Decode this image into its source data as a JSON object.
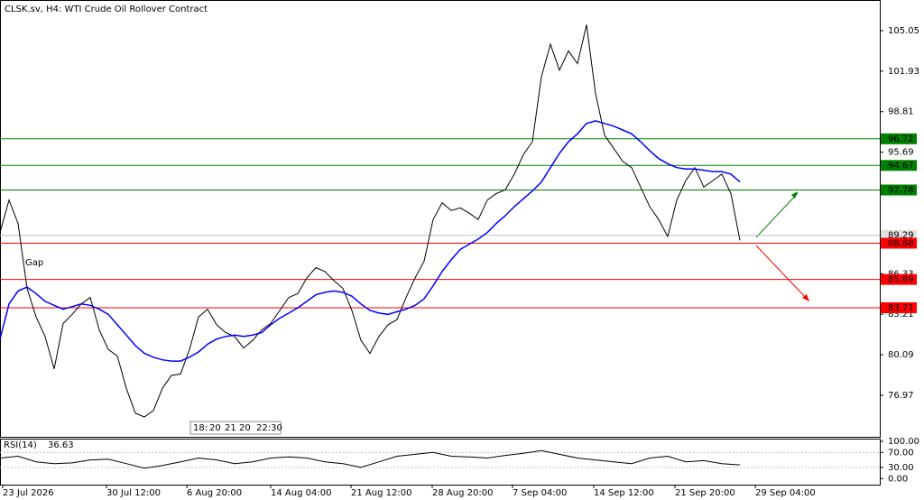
{
  "chart_data": [
    {
      "type": "line",
      "title": "CLSK.sv, H4:  WTI Crude Oil Rollover Contract",
      "xlim": [
        0,
        97.5
      ],
      "ylim": [
        73.77,
        107.41
      ],
      "yticks": [
        76.97,
        80.09,
        83.21,
        86.33,
        95.69,
        98.81,
        101.93,
        105.05
      ],
      "xticks": [
        {
          "value": 0.3,
          "label": "23 Jul 2026"
        },
        {
          "value": 11.8,
          "label": "30 Jul 12:00"
        },
        {
          "value": 20.7,
          "label": "6 Aug 20:00"
        },
        {
          "value": 30,
          "label": "14 Aug 04:00"
        },
        {
          "value": 38.9,
          "label": "21 Aug 12:00"
        },
        {
          "value": 47.9,
          "label": "28 Aug 20:00"
        },
        {
          "value": 56.8,
          "label": "7 Sep 04:00"
        },
        {
          "value": 65.8,
          "label": "14 Sep 12:00"
        },
        {
          "value": 74.8,
          "label": "21 Sep 20:00"
        },
        {
          "value": 83.7,
          "label": "29 Sep 04:00"
        }
      ],
      "series": [
        {
          "color": "#000000",
          "values": [
            89.5,
            92.0,
            90.2,
            85.2,
            83.0,
            81.5,
            79.0,
            82.5,
            83.2,
            84.0,
            84.5,
            82.0,
            80.5,
            80.0,
            77.5,
            75.6,
            75.3,
            75.8,
            77.5,
            78.5,
            78.6,
            80.5,
            83.0,
            83.6,
            82.4,
            81.8,
            81.5,
            80.6,
            81.2,
            82.0,
            82.5,
            83.5,
            84.5,
            84.8,
            86.0,
            86.8,
            86.5,
            85.8,
            85.2,
            83.5,
            81.2,
            80.2,
            81.5,
            82.4,
            82.8,
            84.5,
            86.0,
            87.3,
            90.5,
            91.8,
            91.2,
            91.4,
            91.0,
            90.5,
            92.0,
            92.5,
            92.8,
            94.0,
            95.5,
            96.5,
            101.5,
            104.0,
            102.0,
            103.5,
            102.5,
            105.5,
            100.2,
            97.0,
            96.0,
            95.0,
            94.5,
            93.0,
            91.5,
            90.5,
            89.2,
            92.0,
            93.5,
            94.5,
            93.0,
            93.5,
            94.0,
            92.5,
            88.9
          ]
        },
        {
          "color": "#0000ff",
          "values": [
            81.3,
            84.0,
            85.0,
            85.3,
            84.8,
            84.2,
            83.9,
            83.6,
            83.8,
            84.0,
            83.9,
            83.6,
            83.2,
            82.4,
            81.6,
            80.8,
            80.2,
            79.9,
            79.7,
            79.6,
            79.6,
            79.9,
            80.3,
            80.9,
            81.3,
            81.5,
            81.6,
            81.5,
            81.6,
            81.8,
            82.4,
            82.9,
            83.3,
            83.7,
            84.2,
            84.7,
            84.9,
            85.0,
            84.9,
            84.6,
            84.0,
            83.5,
            83.3,
            83.2,
            83.4,
            83.6,
            83.9,
            84.4,
            85.4,
            86.5,
            87.4,
            88.2,
            88.6,
            89.0,
            89.5,
            90.2,
            90.8,
            91.5,
            92.1,
            92.7,
            93.4,
            94.5,
            95.6,
            96.5,
            97.1,
            97.9,
            98.1,
            97.9,
            97.7,
            97.4,
            97.1,
            96.5,
            95.8,
            95.2,
            94.8,
            94.5,
            94.4,
            94.4,
            94.3,
            94.2,
            94.2,
            94.0,
            93.4
          ]
        }
      ],
      "levels": [
        {
          "value": 96.72,
          "color": "#008000"
        },
        {
          "value": 94.67,
          "color": "#008000"
        },
        {
          "value": 92.78,
          "color": "#008000"
        },
        {
          "value": 88.68,
          "color": "#ff0000"
        },
        {
          "value": 85.89,
          "color": "#ff0000"
        },
        {
          "value": 83.71,
          "color": "#ff0000"
        }
      ],
      "current_price": 89.29,
      "annotations": [
        "Gap",
        "18:",
        "20",
        "21",
        "20",
        "22:30"
      ]
    },
    {
      "type": "line",
      "title": "RSI(14)",
      "xlim": [
        0,
        48.75
      ],
      "ylim": [
        -16.3,
        104.7
      ],
      "yticks": [
        {
          "value": 100,
          "label": "100.00"
        },
        {
          "value": 70,
          "label": "70.00"
        },
        {
          "value": 30,
          "label": "30.00"
        },
        {
          "value": 0,
          "label": "0.00"
        }
      ],
      "levels": [
        30,
        70
      ],
      "color": "#000000",
      "values": [
        55,
        60,
        45,
        40,
        42,
        50,
        52,
        40,
        28,
        35,
        45,
        55,
        50,
        40,
        45,
        55,
        58,
        55,
        45,
        40,
        30,
        45,
        60,
        65,
        70,
        60,
        58,
        55,
        62,
        68,
        75,
        65,
        55,
        50,
        45,
        40,
        55,
        60,
        45,
        48,
        40,
        36.63
      ]
    }
  ]
}
